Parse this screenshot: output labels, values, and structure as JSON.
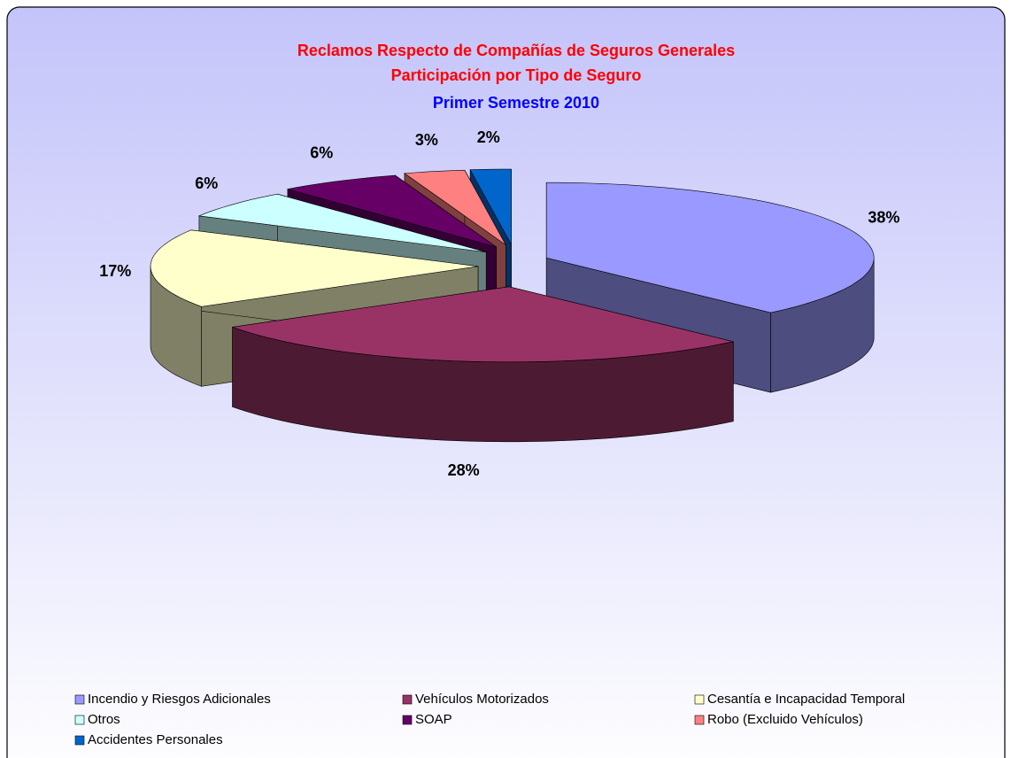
{
  "chart_data": {
    "type": "pie3d",
    "title": [
      "Reclamos Respecto de Compañías de Seguros Generales",
      "Participación por Tipo de Seguro"
    ],
    "subtitle": "Primer Semestre 2010",
    "categories": [
      "Incendio y Riesgos Adicionales",
      "Vehículos Motorizados",
      "Cesantía e Incapacidad Temporal",
      "Otros",
      "SOAP",
      "Robo (Excluido Vehículos)",
      "Accidentes Personales"
    ],
    "values": [
      38,
      28,
      17,
      6,
      6,
      3,
      2
    ],
    "value_labels": [
      "38%",
      "28%",
      "17%",
      "6%",
      "6%",
      "3%",
      "2%"
    ],
    "colors": [
      "#9999ff",
      "#993366",
      "#ffffcc",
      "#ccffff",
      "#660066",
      "#ff8080",
      "#0066cc"
    ],
    "legend": "bottom"
  }
}
